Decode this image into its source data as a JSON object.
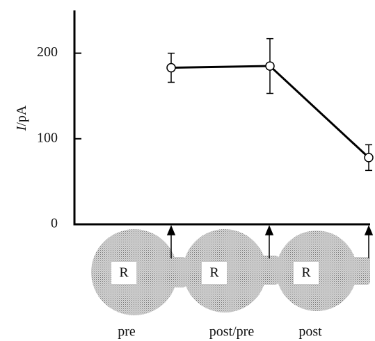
{
  "chart_data": {
    "type": "line",
    "ylabel": "I/pA",
    "categories": [
      "pre",
      "post/pre",
      "post"
    ],
    "values": [
      183,
      185,
      78
    ],
    "errors": [
      17,
      32,
      15
    ],
    "cell_labels": [
      "R",
      "R",
      "R"
    ],
    "ylim": [
      0,
      250
    ],
    "yticks": [
      0,
      100,
      200
    ],
    "color": "#000000"
  }
}
